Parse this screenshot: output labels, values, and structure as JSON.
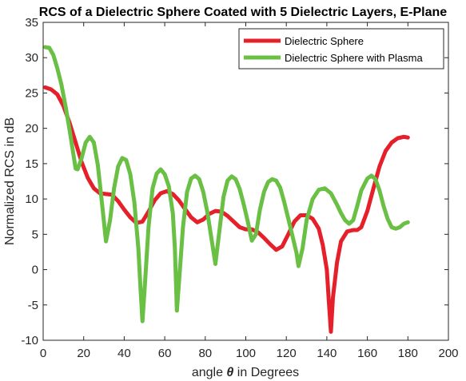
{
  "chart_data": {
    "type": "line",
    "title": "RCS of a Dielectric Sphere Coated with 5 Dielectric Layers, E-Plane",
    "xlabel_prefix": "angle ",
    "xlabel_symbol": "θ",
    "xlabel_suffix": " in Degrees",
    "ylabel": "Normalized RCS in dB",
    "xlim": [
      0,
      200
    ],
    "ylim": [
      -10,
      35
    ],
    "xticks": [
      0,
      20,
      40,
      60,
      80,
      100,
      120,
      140,
      160,
      180,
      200
    ],
    "yticks": [
      -10,
      -5,
      0,
      5,
      10,
      15,
      20,
      25,
      30,
      35
    ],
    "grid": false,
    "legend_position": "top-right",
    "series": [
      {
        "name": "Dielectric Sphere",
        "color": "#e5202a",
        "points": [
          [
            1,
            25.8
          ],
          [
            4,
            25.5
          ],
          [
            7,
            24.8
          ],
          [
            10,
            23.2
          ],
          [
            13,
            20.8
          ],
          [
            16,
            18.0
          ],
          [
            19,
            15.2
          ],
          [
            22,
            13.0
          ],
          [
            25,
            11.5
          ],
          [
            28,
            10.8
          ],
          [
            31,
            10.7
          ],
          [
            34,
            10.6
          ],
          [
            37,
            9.7
          ],
          [
            40,
            8.5
          ],
          [
            43,
            7.4
          ],
          [
            46,
            6.6
          ],
          [
            49,
            6.8
          ],
          [
            52,
            8.2
          ],
          [
            55,
            9.8
          ],
          [
            58,
            10.8
          ],
          [
            61,
            11.1
          ],
          [
            64,
            10.7
          ],
          [
            67,
            9.8
          ],
          [
            70,
            8.6
          ],
          [
            73,
            7.4
          ],
          [
            76,
            6.7
          ],
          [
            79,
            7.1
          ],
          [
            82,
            7.9
          ],
          [
            85,
            8.3
          ],
          [
            88,
            8.2
          ],
          [
            91,
            7.6
          ],
          [
            94,
            6.8
          ],
          [
            97,
            6.0
          ],
          [
            100,
            5.7
          ],
          [
            103,
            5.7
          ],
          [
            106,
            5.3
          ],
          [
            109,
            4.5
          ],
          [
            112,
            3.6
          ],
          [
            115,
            2.8
          ],
          [
            118,
            3.3
          ],
          [
            121,
            5.0
          ],
          [
            124,
            6.8
          ],
          [
            127,
            7.7
          ],
          [
            130,
            7.7
          ],
          [
            133,
            7.2
          ],
          [
            136,
            5.8
          ],
          [
            138,
            3.5
          ],
          [
            140,
            0.0
          ],
          [
            141,
            -4.5
          ],
          [
            142,
            -8.8
          ],
          [
            143,
            -4.0
          ],
          [
            145,
            1.0
          ],
          [
            147,
            4.0
          ],
          [
            150,
            5.4
          ],
          [
            153,
            5.6
          ],
          [
            155,
            5.6
          ],
          [
            157,
            6.0
          ],
          [
            160,
            8.3
          ],
          [
            163,
            11.5
          ],
          [
            166,
            14.6
          ],
          [
            169,
            16.8
          ],
          [
            172,
            18.0
          ],
          [
            175,
            18.6
          ],
          [
            178,
            18.8
          ],
          [
            180,
            18.7
          ]
        ]
      },
      {
        "name": "Dielectric Sphere with Plasma",
        "color": "#6abf45",
        "points": [
          [
            1,
            31.5
          ],
          [
            3,
            31.4
          ],
          [
            5,
            30.4
          ],
          [
            7,
            28.5
          ],
          [
            9,
            26.2
          ],
          [
            11,
            23.2
          ],
          [
            13,
            19.8
          ],
          [
            15,
            16.2
          ],
          [
            16,
            14.3
          ],
          [
            17,
            14.2
          ],
          [
            19,
            15.8
          ],
          [
            21,
            18.0
          ],
          [
            23,
            18.8
          ],
          [
            25,
            18.0
          ],
          [
            27,
            14.8
          ],
          [
            29,
            9.5
          ],
          [
            31,
            4.0
          ],
          [
            33,
            7.0
          ],
          [
            35,
            11.5
          ],
          [
            37,
            14.6
          ],
          [
            39,
            15.8
          ],
          [
            41,
            15.5
          ],
          [
            43,
            13.5
          ],
          [
            45,
            9.5
          ],
          [
            47,
            3.0
          ],
          [
            48,
            -2.5
          ],
          [
            49,
            -7.3
          ],
          [
            50,
            -3.0
          ],
          [
            52,
            6.0
          ],
          [
            54,
            11.5
          ],
          [
            56,
            13.6
          ],
          [
            58,
            14.2
          ],
          [
            60,
            13.5
          ],
          [
            62,
            11.8
          ],
          [
            64,
            8.0
          ],
          [
            65,
            3.0
          ],
          [
            66,
            -5.8
          ],
          [
            67,
            -2.0
          ],
          [
            69,
            6.0
          ],
          [
            71,
            11.0
          ],
          [
            73,
            12.9
          ],
          [
            75,
            13.3
          ],
          [
            77,
            12.8
          ],
          [
            79,
            11.0
          ],
          [
            81,
            8.2
          ],
          [
            83,
            4.5
          ],
          [
            85,
            0.8
          ],
          [
            87,
            5.5
          ],
          [
            89,
            10.3
          ],
          [
            91,
            12.6
          ],
          [
            93,
            13.2
          ],
          [
            95,
            12.8
          ],
          [
            97,
            11.4
          ],
          [
            99,
            9.2
          ],
          [
            101,
            6.8
          ],
          [
            103,
            4.1
          ],
          [
            105,
            5.0
          ],
          [
            107,
            8.5
          ],
          [
            109,
            11.0
          ],
          [
            111,
            12.4
          ],
          [
            113,
            12.8
          ],
          [
            115,
            12.6
          ],
          [
            117,
            11.6
          ],
          [
            119,
            9.5
          ],
          [
            121,
            7.2
          ],
          [
            123,
            4.8
          ],
          [
            125,
            2.4
          ],
          [
            126,
            0.5
          ],
          [
            128,
            3.0
          ],
          [
            130,
            7.0
          ],
          [
            133,
            10.0
          ],
          [
            136,
            11.3
          ],
          [
            139,
            11.5
          ],
          [
            142,
            10.8
          ],
          [
            145,
            9.2
          ],
          [
            147,
            8.0
          ],
          [
            149,
            7.0
          ],
          [
            151,
            6.5
          ],
          [
            153,
            7.0
          ],
          [
            155,
            9.0
          ],
          [
            157,
            11.2
          ],
          [
            160,
            12.9
          ],
          [
            162,
            13.3
          ],
          [
            164,
            12.8
          ],
          [
            166,
            11.2
          ],
          [
            168,
            9.0
          ],
          [
            170,
            7.2
          ],
          [
            172,
            6.0
          ],
          [
            174,
            5.8
          ],
          [
            176,
            6.0
          ],
          [
            178,
            6.5
          ],
          [
            180,
            6.7
          ]
        ]
      }
    ]
  }
}
